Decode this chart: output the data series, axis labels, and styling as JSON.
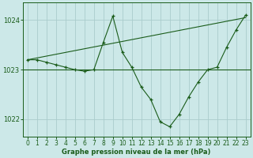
{
  "title": "Graphe pression niveau de la mer (hPa)",
  "background_color": "#cce8e8",
  "grid_color": "#aacccc",
  "line_color": "#1a5c1a",
  "marker_color": "#1a5c1a",
  "x_values": [
    0,
    1,
    2,
    3,
    4,
    5,
    6,
    7,
    8,
    9,
    10,
    11,
    12,
    13,
    14,
    15,
    16,
    17,
    18,
    19,
    20,
    21,
    22,
    23
  ],
  "y_values": [
    1023.2,
    1023.2,
    1023.15,
    1023.1,
    1023.05,
    1023.0,
    1022.97,
    1023.0,
    1023.55,
    1024.08,
    1023.35,
    1023.05,
    1022.65,
    1022.4,
    1021.95,
    1021.85,
    1022.1,
    1022.45,
    1022.75,
    1023.0,
    1023.05,
    1023.45,
    1023.8,
    1024.1
  ],
  "trend_x": [
    0,
    23
  ],
  "trend_y": [
    1023.2,
    1024.05
  ],
  "hline_y": 1023.0,
  "ylim": [
    1021.65,
    1024.35
  ],
  "xlim": [
    -0.5,
    23.5
  ],
  "ytick_values": [
    1022,
    1023,
    1024
  ],
  "xtick_values": [
    0,
    1,
    2,
    3,
    4,
    5,
    6,
    7,
    8,
    9,
    10,
    11,
    12,
    13,
    14,
    15,
    16,
    17,
    18,
    19,
    20,
    21,
    22,
    23
  ],
  "figsize": [
    3.2,
    2.0
  ],
  "dpi": 100
}
